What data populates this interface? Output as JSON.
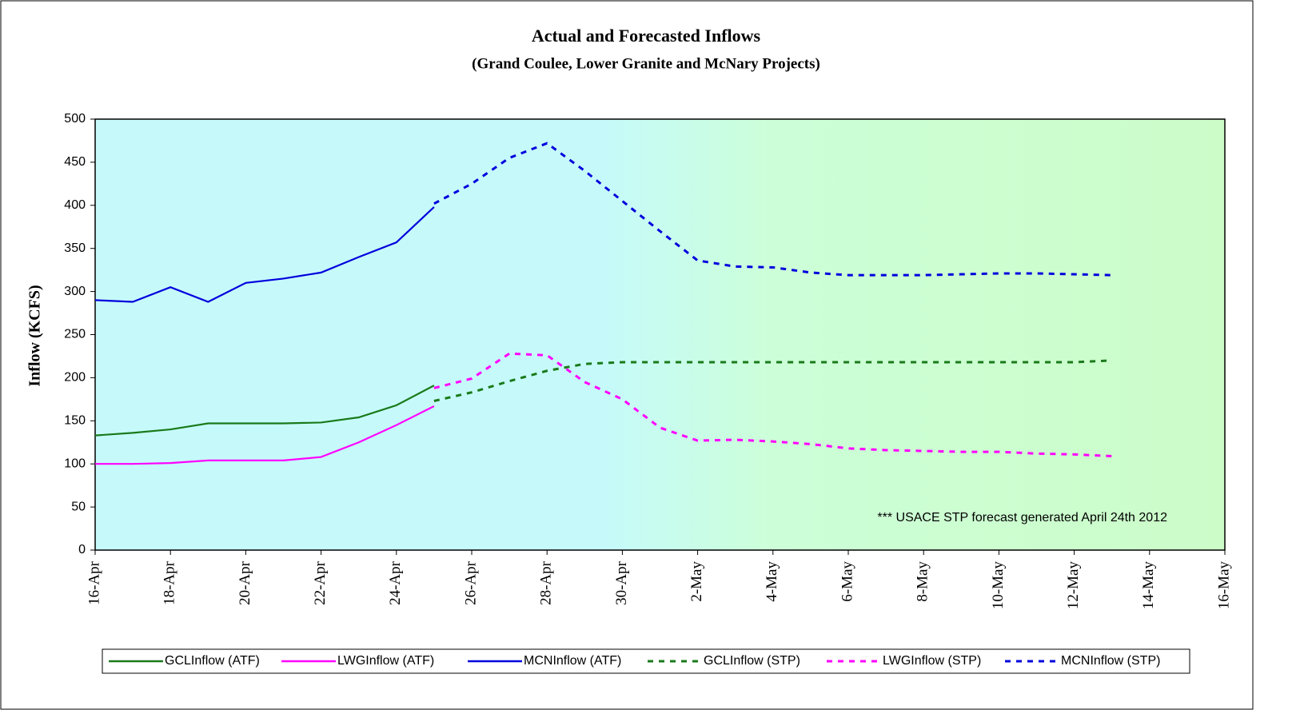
{
  "chart_data": {
    "type": "line",
    "title": "Actual and Forecasted Inflows",
    "subtitle": "(Grand Coulee, Lower Granite and McNary Projects)",
    "y_label": "Inflow (KCFS)",
    "annotation": "*** USACE STP forecast generated April 24th 2012",
    "xlim": [
      0,
      30
    ],
    "xticks": [
      {
        "value": 0,
        "label": "16-Apr"
      },
      {
        "value": 2,
        "label": "18-Apr"
      },
      {
        "value": 4,
        "label": "20-Apr"
      },
      {
        "value": 6,
        "label": "22-Apr"
      },
      {
        "value": 8,
        "label": "24-Apr"
      },
      {
        "value": 10,
        "label": "26-Apr"
      },
      {
        "value": 12,
        "label": "28-Apr"
      },
      {
        "value": 14,
        "label": "30-Apr"
      },
      {
        "value": 16,
        "label": "2-May"
      },
      {
        "value": 18,
        "label": "4-May"
      },
      {
        "value": 20,
        "label": "6-May"
      },
      {
        "value": 22,
        "label": "8-May"
      },
      {
        "value": 24,
        "label": "10-May"
      },
      {
        "value": 26,
        "label": "12-May"
      },
      {
        "value": 28,
        "label": "14-May"
      },
      {
        "value": 30,
        "label": "16-May"
      }
    ],
    "ylim": [
      0,
      500
    ],
    "yticks": [
      0,
      50,
      100,
      150,
      200,
      250,
      300,
      350,
      400,
      450,
      500
    ],
    "legend": "bottom",
    "series": [
      {
        "name": "GCLInflow (ATF)",
        "color": "#1a7a1a",
        "dashed": false,
        "x": [
          0,
          1,
          2,
          3,
          4,
          5,
          6,
          7,
          8,
          9
        ],
        "values": [
          133,
          136,
          140,
          147,
          147,
          147,
          148,
          154,
          168,
          191
        ]
      },
      {
        "name": "LWGInflow (ATF)",
        "color": "#ff00ff",
        "dashed": false,
        "x": [
          0,
          1,
          2,
          3,
          4,
          5,
          6,
          7,
          8,
          9
        ],
        "values": [
          100,
          100,
          101,
          104,
          104,
          104,
          108,
          125,
          145,
          167
        ]
      },
      {
        "name": "MCNInflow (ATF)",
        "color": "#0000dd",
        "dashed": false,
        "x": [
          0,
          1,
          2,
          3,
          4,
          5,
          6,
          7,
          8,
          9
        ],
        "values": [
          290,
          288,
          305,
          288,
          310,
          315,
          322,
          340,
          357,
          398
        ]
      },
      {
        "name": "GCLInflow (STP)",
        "color": "#1a7a1a",
        "dashed": true,
        "x": [
          9,
          10,
          11,
          12,
          13,
          14,
          15,
          16,
          17,
          18,
          19,
          20,
          21,
          22,
          23,
          24,
          25,
          26,
          27
        ],
        "values": [
          173,
          183,
          196,
          208,
          216,
          218,
          218,
          218,
          218,
          218,
          218,
          218,
          218,
          218,
          218,
          218,
          218,
          218,
          220
        ]
      },
      {
        "name": "LWGInflow (STP)",
        "color": "#ff00ff",
        "dashed": true,
        "x": [
          9,
          10,
          11,
          12,
          13,
          14,
          15,
          16,
          17,
          18,
          19,
          20,
          21,
          22,
          23,
          24,
          25,
          26,
          27
        ],
        "values": [
          188,
          199,
          228,
          226,
          195,
          175,
          142,
          127,
          128,
          126,
          123,
          118,
          116,
          115,
          114,
          114,
          112,
          111,
          109
        ]
      },
      {
        "name": "MCNInflow (STP)",
        "color": "#0000dd",
        "dashed": true,
        "x": [
          9,
          10,
          11,
          12,
          13,
          14,
          15,
          16,
          17,
          18,
          19,
          20,
          21,
          22,
          23,
          24,
          25,
          26,
          27
        ],
        "values": [
          402,
          425,
          455,
          472,
          440,
          405,
          370,
          336,
          329,
          328,
          322,
          319,
          319,
          319,
          320,
          321,
          321,
          320,
          319
        ]
      }
    ]
  }
}
